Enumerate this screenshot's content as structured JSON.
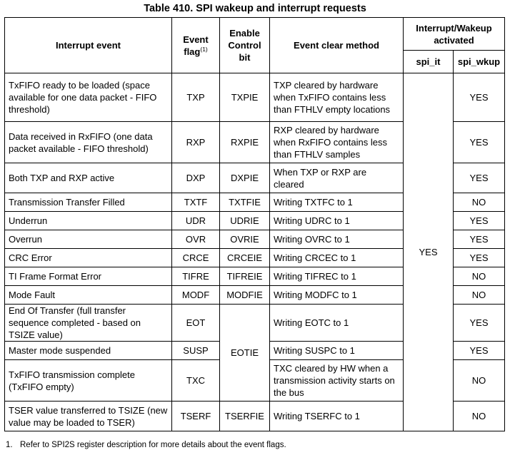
{
  "title": "Table 410. SPI wakeup and interrupt requests",
  "headers": {
    "interrupt_event": "Interrupt event",
    "event_flag": "Event flag",
    "event_flag_sup": "(1)",
    "enable_control_bit": "Enable Control bit",
    "event_clear_method": "Event clear method",
    "activated": "Interrupt/Wakeup activated",
    "spi_it": "spi_it",
    "spi_wkup": "spi_wkup"
  },
  "spi_it_value": "YES",
  "eotie_shared": "EOTIE",
  "rows": [
    {
      "event": "TxFIFO ready to be loaded (space available for one data packet - FIFO threshold)",
      "flag": "TXP",
      "enable": "TXPIE",
      "clear": "TXP cleared by hardware when TxFIFO contains less than FTHLV empty locations",
      "wkup": "YES"
    },
    {
      "event": "Data received in RxFIFO (one data packet available - FIFO threshold)",
      "flag": "RXP",
      "enable": "RXPIE",
      "clear": "RXP cleared by hardware when RxFIFO contains less than FTHLV samples",
      "wkup": "YES"
    },
    {
      "event": "Both TXP and RXP active",
      "flag": "DXP",
      "enable": "DXPIE",
      "clear": "When TXP or RXP are cleared",
      "wkup": "YES"
    },
    {
      "event": "Transmission Transfer Filled",
      "flag": "TXTF",
      "enable": "TXTFIE",
      "clear": "Writing TXTFC to 1",
      "wkup": "NO"
    },
    {
      "event": "Underrun",
      "flag": "UDR",
      "enable": "UDRIE",
      "clear": "Writing UDRC to 1",
      "wkup": "YES"
    },
    {
      "event": "Overrun",
      "flag": "OVR",
      "enable": "OVRIE",
      "clear": "Writing OVRC to 1",
      "wkup": "YES"
    },
    {
      "event": "CRC Error",
      "flag": "CRCE",
      "enable": "CRCEIE",
      "clear": "Writing CRCEC to 1",
      "wkup": "YES"
    },
    {
      "event": "TI Frame Format Error",
      "flag": "TIFRE",
      "enable": "TIFREIE",
      "clear": "Writing TIFREC to 1",
      "wkup": "NO"
    },
    {
      "event": "Mode Fault",
      "flag": "MODF",
      "enable": "MODFIE",
      "clear": "Writing MODFC to 1",
      "wkup": "NO"
    },
    {
      "event": "End Of Transfer (full transfer sequence completed - based on TSIZE value)",
      "flag": "EOT",
      "clear": "Writing EOTC to 1",
      "wkup": "YES"
    },
    {
      "event": "Master mode suspended",
      "flag": "SUSP",
      "clear": "Writing SUSPC to 1",
      "wkup": "YES"
    },
    {
      "event": "TxFIFO transmission complete (TxFIFO empty)",
      "flag": "TXC",
      "clear": "TXC cleared by HW when a transmission activity starts on the bus",
      "wkup": "NO"
    },
    {
      "event": "TSER value transferred to TSIZE (new value may be loaded to TSER)",
      "flag": "TSERF",
      "enable": "TSERFIE",
      "clear": "Writing TSERFC to 1",
      "wkup": "NO"
    }
  ],
  "footnote": {
    "num": "1.",
    "text": "Refer to SPI2S register description for more details about the event flags."
  }
}
